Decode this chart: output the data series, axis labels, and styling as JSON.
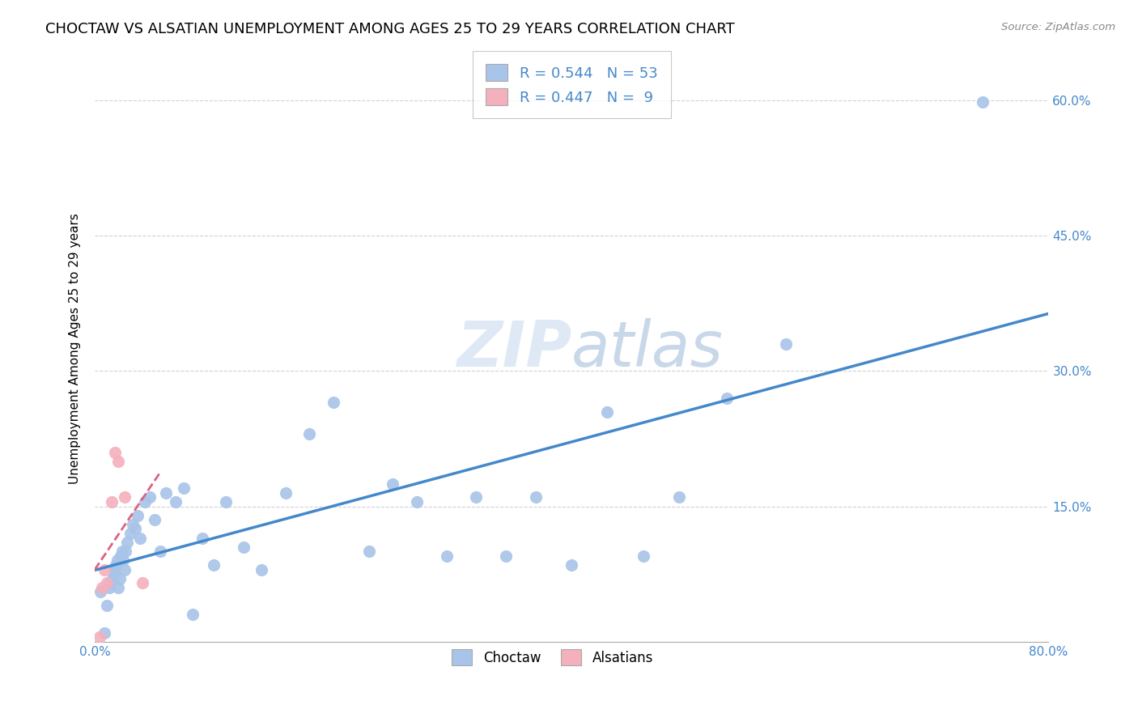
{
  "title": "CHOCTAW VS ALSATIAN UNEMPLOYMENT AMONG AGES 25 TO 29 YEARS CORRELATION CHART",
  "source": "Source: ZipAtlas.com",
  "ylabel": "Unemployment Among Ages 25 to 29 years",
  "xlim": [
    0.0,
    0.8
  ],
  "ylim": [
    0.0,
    0.65
  ],
  "y_ticks": [
    0.0,
    0.15,
    0.3,
    0.45,
    0.6
  ],
  "y_tick_labels": [
    "",
    "15.0%",
    "30.0%",
    "45.0%",
    "60.0%"
  ],
  "x_ticks": [
    0.0,
    0.2,
    0.4,
    0.6,
    0.8
  ],
  "x_tick_labels": [
    "0.0%",
    "",
    "",
    "",
    "80.0%"
  ],
  "watermark_part1": "ZIP",
  "watermark_part2": "atlas",
  "choctaw_R": 0.544,
  "choctaw_N": 53,
  "alsatian_R": 0.447,
  "alsatian_N": 9,
  "choctaw_color": "#a8c4e8",
  "choctaw_line_color": "#4488cc",
  "alsatian_color": "#f4b0bc",
  "alsatian_line_color": "#e06080",
  "choctaw_x": [
    0.005,
    0.008,
    0.01,
    0.012,
    0.013,
    0.015,
    0.016,
    0.017,
    0.018,
    0.019,
    0.02,
    0.021,
    0.022,
    0.023,
    0.024,
    0.025,
    0.026,
    0.027,
    0.03,
    0.032,
    0.034,
    0.036,
    0.038,
    0.042,
    0.046,
    0.05,
    0.055,
    0.06,
    0.068,
    0.075,
    0.082,
    0.09,
    0.1,
    0.11,
    0.125,
    0.14,
    0.16,
    0.18,
    0.2,
    0.23,
    0.25,
    0.27,
    0.295,
    0.32,
    0.345,
    0.37,
    0.4,
    0.43,
    0.46,
    0.49,
    0.53,
    0.58,
    0.745
  ],
  "choctaw_y": [
    0.055,
    0.01,
    0.04,
    0.06,
    0.065,
    0.07,
    0.075,
    0.08,
    0.085,
    0.09,
    0.06,
    0.07,
    0.095,
    0.1,
    0.09,
    0.08,
    0.1,
    0.11,
    0.12,
    0.13,
    0.125,
    0.14,
    0.115,
    0.155,
    0.16,
    0.135,
    0.1,
    0.165,
    0.155,
    0.17,
    0.03,
    0.115,
    0.085,
    0.155,
    0.105,
    0.08,
    0.165,
    0.23,
    0.265,
    0.1,
    0.175,
    0.155,
    0.095,
    0.16,
    0.095,
    0.16,
    0.085,
    0.255,
    0.095,
    0.16,
    0.27,
    0.33,
    0.598
  ],
  "alsatian_x": [
    0.004,
    0.006,
    0.008,
    0.01,
    0.014,
    0.017,
    0.02,
    0.025,
    0.04
  ],
  "alsatian_y": [
    0.005,
    0.06,
    0.08,
    0.065,
    0.155,
    0.21,
    0.2,
    0.16,
    0.065
  ],
  "background_color": "#ffffff",
  "grid_color": "#cccccc",
  "title_fontsize": 13,
  "label_fontsize": 11,
  "tick_fontsize": 11,
  "legend_fontsize": 13
}
